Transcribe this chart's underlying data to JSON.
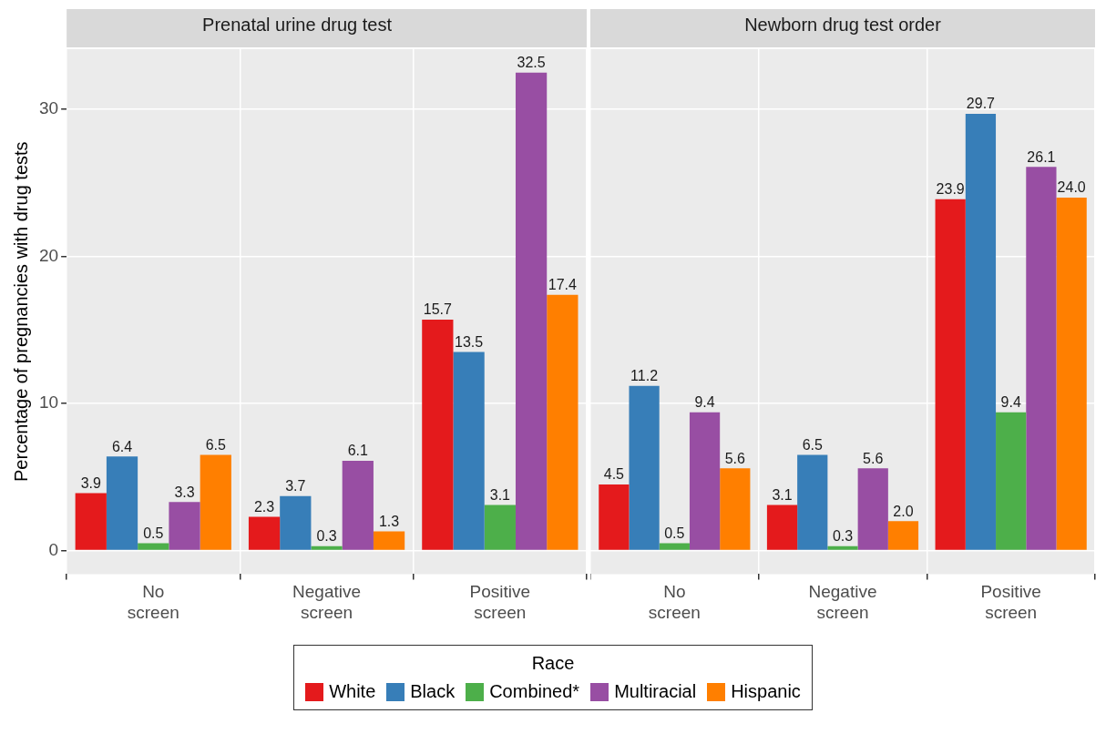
{
  "chart_data": [
    {
      "type": "bar",
      "title": "Prenatal urine drug test",
      "ylabel": "Percentage of pregnancies with drug tests",
      "legend_title": "Race",
      "legend": "bottom",
      "categories": [
        "No screen",
        "Negative screen",
        "Positive screen"
      ],
      "ylim": [
        -1.6,
        34.1
      ],
      "yticks": [
        0,
        10,
        20,
        30
      ],
      "grid": true,
      "series": [
        {
          "name": "White",
          "color": "#e41a1c",
          "values": [
            3.9,
            2.3,
            15.7
          ],
          "value_labels": [
            "3.9",
            "2.3",
            "15.7"
          ]
        },
        {
          "name": "Black",
          "color": "#377eb8",
          "values": [
            6.4,
            3.7,
            13.5
          ],
          "value_labels": [
            "6.4",
            "3.7",
            "13.5"
          ]
        },
        {
          "name": "Combined*",
          "color": "#4daf4a",
          "values": [
            0.5,
            0.3,
            3.1
          ],
          "value_labels": [
            "0.5",
            "0.3",
            "3.1"
          ]
        },
        {
          "name": "Multiracial",
          "color": "#984ea3",
          "values": [
            3.3,
            6.1,
            32.5
          ],
          "value_labels": [
            "3.3",
            "6.1",
            "32.5"
          ]
        },
        {
          "name": "Hispanic",
          "color": "#ff7f00",
          "values": [
            6.5,
            1.3,
            17.4
          ],
          "value_labels": [
            "6.5",
            "1.3",
            "17.4"
          ]
        }
      ]
    },
    {
      "type": "bar",
      "title": "Newborn drug test order",
      "categories": [
        "No screen",
        "Negative screen",
        "Positive screen"
      ],
      "ylim": [
        -1.6,
        34.1
      ],
      "yticks": [
        0,
        10,
        20,
        30
      ],
      "tick_labels": "x",
      "grid": true,
      "series": [
        {
          "color": "#e41a1c",
          "values": [
            4.5,
            3.1,
            23.9
          ],
          "value_labels": [
            "4.5",
            "3.1",
            "23.9"
          ]
        },
        {
          "color": "#377eb8",
          "values": [
            11.2,
            6.5,
            29.7
          ],
          "value_labels": [
            "11.2",
            "6.5",
            "29.7"
          ]
        },
        {
          "color": "#4daf4a",
          "values": [
            0.5,
            0.3,
            9.4
          ],
          "value_labels": [
            "0.5",
            "0.3",
            "9.4"
          ]
        },
        {
          "color": "#984ea3",
          "values": [
            9.4,
            5.6,
            26.1
          ],
          "value_labels": [
            "9.4",
            "5.6",
            "26.1"
          ]
        },
        {
          "color": "#ff7f00",
          "values": [
            5.6,
            2.0,
            24.0
          ],
          "value_labels": [
            "5.6",
            "2.0",
            "24.0"
          ]
        }
      ]
    }
  ]
}
